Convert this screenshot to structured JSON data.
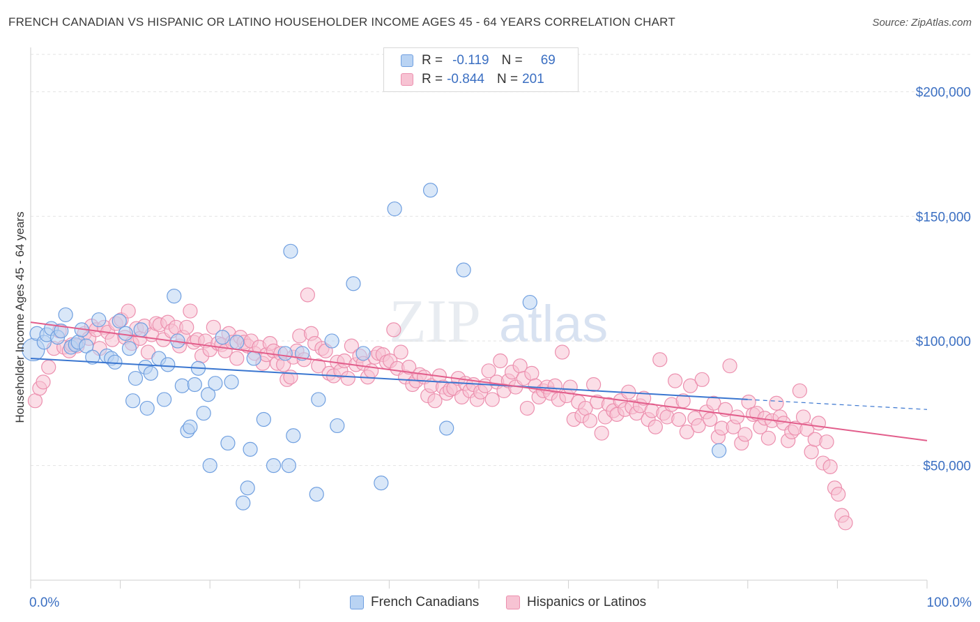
{
  "title": "FRENCH CANADIAN VS HISPANIC OR LATINO HOUSEHOLDER INCOME AGES 45 - 64 YEARS CORRELATION CHART",
  "source": "Source: ZipAtlas.com",
  "watermark": "ZIPatlas",
  "legend": {
    "r_label": "R =",
    "n_label": "N =",
    "series": [
      {
        "r": "-0.119",
        "n": "69",
        "fill": "#b9d3f3",
        "stroke": "#6f9fe0"
      },
      {
        "r": "-0.844",
        "n": "201",
        "fill": "#f7c3d3",
        "stroke": "#ec8fae"
      }
    ]
  },
  "chart_data": {
    "type": "scatter",
    "title": "FRENCH CANADIAN VS HISPANIC OR LATINO HOUSEHOLDER INCOME AGES 45 - 64 YEARS CORRELATION CHART",
    "ylabel": "Householder Income Ages 45 - 64 years",
    "xlabel": "",
    "xlim": [
      0,
      100
    ],
    "ylim": [
      4000,
      215000
    ],
    "x_tick_labels": [
      "0.0%",
      "100.0%"
    ],
    "y_ticks": [
      50000,
      100000,
      150000,
      200000
    ],
    "y_tick_labels": [
      "$50,000",
      "$100,000",
      "$150,000",
      "$200,000"
    ],
    "grid": true,
    "series": [
      {
        "name": "French Canadians",
        "color": "#6f9fe0",
        "fill": "#b9d3f3",
        "trend": {
          "x0": 0,
          "y0": 93000,
          "x1": 80,
          "y1": 76500,
          "dashed_to_x": 100,
          "dashed_to_y": 72500,
          "color": "#3a76d0"
        },
        "points": [
          [
            0.3,
            96500
          ],
          [
            0.7,
            103000
          ],
          [
            1.5,
            99500
          ],
          [
            1.8,
            102500
          ],
          [
            2.3,
            105000
          ],
          [
            3.0,
            101500
          ],
          [
            3.4,
            104000
          ],
          [
            3.9,
            110500
          ],
          [
            4.5,
            97500
          ],
          [
            5.0,
            98500
          ],
          [
            5.3,
            99500
          ],
          [
            5.7,
            104500
          ],
          [
            6.2,
            98000
          ],
          [
            6.9,
            93500
          ],
          [
            7.6,
            108500
          ],
          [
            8.5,
            94000
          ],
          [
            9.0,
            93000
          ],
          [
            9.4,
            91500
          ],
          [
            9.9,
            108000
          ],
          [
            10.6,
            103000
          ],
          [
            11.0,
            97000
          ],
          [
            11.4,
            76000
          ],
          [
            11.7,
            85000
          ],
          [
            12.3,
            104500
          ],
          [
            12.8,
            89500
          ],
          [
            13.0,
            73000
          ],
          [
            13.4,
            87000
          ],
          [
            14.3,
            93000
          ],
          [
            14.9,
            76500
          ],
          [
            15.3,
            90500
          ],
          [
            16.0,
            118000
          ],
          [
            16.4,
            100000
          ],
          [
            16.9,
            82000
          ],
          [
            17.5,
            64000
          ],
          [
            17.8,
            65500
          ],
          [
            18.3,
            82500
          ],
          [
            18.7,
            89000
          ],
          [
            19.3,
            71000
          ],
          [
            19.8,
            78500
          ],
          [
            20.0,
            50000
          ],
          [
            20.6,
            83000
          ],
          [
            21.4,
            101500
          ],
          [
            22.0,
            59000
          ],
          [
            22.4,
            83500
          ],
          [
            23.0,
            99500
          ],
          [
            23.7,
            35000
          ],
          [
            24.2,
            41000
          ],
          [
            24.5,
            56500
          ],
          [
            24.9,
            93000
          ],
          [
            26.0,
            68500
          ],
          [
            27.1,
            50000
          ],
          [
            28.4,
            95000
          ],
          [
            28.8,
            50000
          ],
          [
            29.0,
            136000
          ],
          [
            29.3,
            62000
          ],
          [
            30.3,
            95000
          ],
          [
            31.9,
            38500
          ],
          [
            32.1,
            76500
          ],
          [
            33.6,
            100000
          ],
          [
            34.2,
            66000
          ],
          [
            36.0,
            123000
          ],
          [
            37.1,
            95000
          ],
          [
            39.1,
            43000
          ],
          [
            40.6,
            153000
          ],
          [
            44.6,
            160500
          ],
          [
            46.4,
            65000
          ],
          [
            48.3,
            128500
          ],
          [
            55.7,
            115500
          ],
          [
            76.8,
            56000
          ]
        ]
      },
      {
        "name": "Hispanics or Latinos",
        "color": "#ec8fae",
        "fill": "#f7c3d3",
        "trend": {
          "x0": 0,
          "y0": 107500,
          "x1": 100,
          "y1": 60000,
          "color": "#e25d8b"
        },
        "points": [
          [
            0.5,
            76000
          ],
          [
            1.0,
            81000
          ],
          [
            1.4,
            83500
          ],
          [
            2.0,
            89500
          ],
          [
            2.6,
            97000
          ],
          [
            3.2,
            104000
          ],
          [
            3.7,
            97500
          ],
          [
            4.3,
            96000
          ],
          [
            4.6,
            98500
          ],
          [
            5.2,
            98000
          ],
          [
            6.0,
            103000
          ],
          [
            6.5,
            101000
          ],
          [
            6.8,
            106000
          ],
          [
            7.3,
            104500
          ],
          [
            7.7,
            97000
          ],
          [
            8.2,
            105500
          ],
          [
            8.6,
            103500
          ],
          [
            9.1,
            100500
          ],
          [
            9.5,
            107000
          ],
          [
            10.1,
            108500
          ],
          [
            10.5,
            101500
          ],
          [
            10.9,
            112000
          ],
          [
            11.3,
            99000
          ],
          [
            11.8,
            105000
          ],
          [
            12.2,
            101000
          ],
          [
            12.7,
            106000
          ],
          [
            13.1,
            95500
          ],
          [
            13.5,
            102500
          ],
          [
            14.0,
            107000
          ],
          [
            14.4,
            106500
          ],
          [
            14.8,
            100500
          ],
          [
            15.3,
            107500
          ],
          [
            15.7,
            104000
          ],
          [
            16.2,
            105500
          ],
          [
            16.6,
            98000
          ],
          [
            17.0,
            101500
          ],
          [
            17.4,
            105500
          ],
          [
            17.8,
            112000
          ],
          [
            18.2,
            99500
          ],
          [
            18.6,
            100500
          ],
          [
            19.1,
            94000
          ],
          [
            19.5,
            100000
          ],
          [
            20.0,
            96500
          ],
          [
            20.4,
            105500
          ],
          [
            20.9,
            99000
          ],
          [
            21.3,
            98500
          ],
          [
            21.7,
            96000
          ],
          [
            22.1,
            103000
          ],
          [
            22.5,
            99500
          ],
          [
            23.0,
            93000
          ],
          [
            23.4,
            101500
          ],
          [
            23.8,
            99500
          ],
          [
            24.2,
            98000
          ],
          [
            24.6,
            100000
          ],
          [
            25.0,
            95000
          ],
          [
            25.5,
            97500
          ],
          [
            25.9,
            91000
          ],
          [
            26.3,
            94500
          ],
          [
            26.7,
            99000
          ],
          [
            27.1,
            96000
          ],
          [
            27.5,
            91000
          ],
          [
            27.9,
            95000
          ],
          [
            28.2,
            90500
          ],
          [
            28.6,
            84500
          ],
          [
            29.0,
            85500
          ],
          [
            29.3,
            93500
          ],
          [
            29.7,
            96000
          ],
          [
            30.0,
            102000
          ],
          [
            30.5,
            92500
          ],
          [
            30.9,
            118500
          ],
          [
            31.3,
            103000
          ],
          [
            31.7,
            99000
          ],
          [
            32.1,
            90000
          ],
          [
            32.5,
            97000
          ],
          [
            32.9,
            96000
          ],
          [
            33.3,
            87000
          ],
          [
            33.8,
            86000
          ],
          [
            34.2,
            91500
          ],
          [
            34.6,
            88000
          ],
          [
            35.0,
            92000
          ],
          [
            35.4,
            85000
          ],
          [
            35.8,
            98000
          ],
          [
            36.3,
            90500
          ],
          [
            36.7,
            94000
          ],
          [
            37.1,
            91000
          ],
          [
            37.6,
            85500
          ],
          [
            38.0,
            88000
          ],
          [
            38.4,
            93500
          ],
          [
            38.8,
            95000
          ],
          [
            39.3,
            94500
          ],
          [
            39.7,
            91500
          ],
          [
            40.1,
            92000
          ],
          [
            40.5,
            104500
          ],
          [
            40.9,
            89000
          ],
          [
            41.3,
            95500
          ],
          [
            41.8,
            85500
          ],
          [
            42.2,
            89500
          ],
          [
            42.6,
            82500
          ],
          [
            43.0,
            84000
          ],
          [
            43.4,
            86500
          ],
          [
            43.9,
            85500
          ],
          [
            44.3,
            78000
          ],
          [
            44.7,
            82000
          ],
          [
            45.1,
            76000
          ],
          [
            45.6,
            86000
          ],
          [
            46.0,
            81500
          ],
          [
            46.4,
            79000
          ],
          [
            46.8,
            80500
          ],
          [
            47.2,
            81000
          ],
          [
            47.7,
            85000
          ],
          [
            48.1,
            77500
          ],
          [
            48.5,
            83000
          ],
          [
            49.0,
            80000
          ],
          [
            49.4,
            82500
          ],
          [
            49.8,
            76500
          ],
          [
            50.2,
            79500
          ],
          [
            50.7,
            82000
          ],
          [
            51.1,
            88000
          ],
          [
            51.5,
            76500
          ],
          [
            52.0,
            83500
          ],
          [
            52.4,
            92000
          ],
          [
            52.8,
            80000
          ],
          [
            53.3,
            84000
          ],
          [
            53.7,
            87500
          ],
          [
            54.1,
            81500
          ],
          [
            54.6,
            90000
          ],
          [
            55.0,
            85000
          ],
          [
            55.4,
            73000
          ],
          [
            55.9,
            87000
          ],
          [
            56.3,
            82000
          ],
          [
            56.7,
            77500
          ],
          [
            57.2,
            80000
          ],
          [
            57.6,
            81500
          ],
          [
            58.0,
            79000
          ],
          [
            58.5,
            82000
          ],
          [
            58.9,
            76500
          ],
          [
            59.3,
            95500
          ],
          [
            59.8,
            78000
          ],
          [
            60.2,
            81500
          ],
          [
            60.6,
            68500
          ],
          [
            61.1,
            75500
          ],
          [
            61.5,
            70000
          ],
          [
            61.9,
            73000
          ],
          [
            62.4,
            68000
          ],
          [
            62.8,
            82500
          ],
          [
            63.2,
            75500
          ],
          [
            63.7,
            63000
          ],
          [
            64.1,
            69500
          ],
          [
            64.5,
            74500
          ],
          [
            65.0,
            72000
          ],
          [
            65.4,
            70500
          ],
          [
            65.8,
            76000
          ],
          [
            66.3,
            72500
          ],
          [
            66.7,
            79500
          ],
          [
            67.1,
            73500
          ],
          [
            67.6,
            71000
          ],
          [
            68.0,
            74000
          ],
          [
            68.4,
            77000
          ],
          [
            68.9,
            68500
          ],
          [
            69.3,
            72000
          ],
          [
            69.7,
            65500
          ],
          [
            70.2,
            92500
          ],
          [
            70.6,
            71000
          ],
          [
            71.0,
            69500
          ],
          [
            71.5,
            74500
          ],
          [
            71.9,
            84000
          ],
          [
            72.3,
            68500
          ],
          [
            72.8,
            76000
          ],
          [
            73.2,
            63500
          ],
          [
            73.6,
            82000
          ],
          [
            74.1,
            69000
          ],
          [
            74.5,
            66000
          ],
          [
            74.9,
            84500
          ],
          [
            75.4,
            71500
          ],
          [
            75.8,
            68500
          ],
          [
            76.2,
            75000
          ],
          [
            76.7,
            61500
          ],
          [
            77.1,
            65000
          ],
          [
            77.5,
            72500
          ],
          [
            78.0,
            90000
          ],
          [
            78.4,
            65500
          ],
          [
            78.8,
            69500
          ],
          [
            79.3,
            59000
          ],
          [
            79.7,
            62500
          ],
          [
            80.1,
            75500
          ],
          [
            80.6,
            70500
          ],
          [
            81.0,
            71000
          ],
          [
            81.4,
            65500
          ],
          [
            81.9,
            69000
          ],
          [
            82.3,
            61000
          ],
          [
            82.7,
            68000
          ],
          [
            83.2,
            75000
          ],
          [
            83.6,
            69500
          ],
          [
            84.0,
            67000
          ],
          [
            84.5,
            60000
          ],
          [
            84.9,
            63500
          ],
          [
            85.3,
            65000
          ],
          [
            85.8,
            80000
          ],
          [
            86.2,
            69500
          ],
          [
            86.6,
            64500
          ],
          [
            87.1,
            55500
          ],
          [
            87.5,
            60500
          ],
          [
            87.9,
            67000
          ],
          [
            88.4,
            51000
          ],
          [
            88.8,
            59500
          ],
          [
            89.2,
            49500
          ],
          [
            89.7,
            41000
          ],
          [
            90.1,
            38500
          ],
          [
            90.5,
            30000
          ],
          [
            90.9,
            27000
          ]
        ]
      }
    ]
  }
}
